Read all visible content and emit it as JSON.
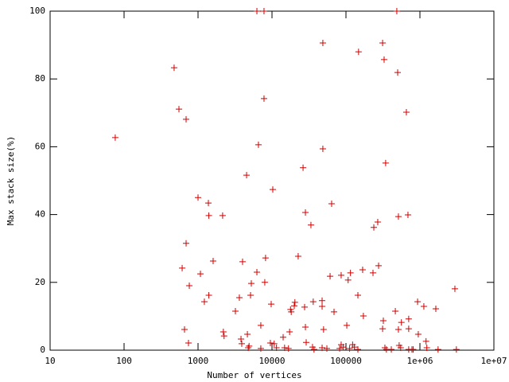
{
  "chart_data": {
    "type": "scatter",
    "x_label": "Number of vertices",
    "y_label": "Max stack size(%)",
    "xlog": true,
    "xlim": [
      10,
      10000000
    ],
    "xticks": [
      10,
      100,
      1000,
      10000,
      100000,
      {
        "value": 1000000,
        "label": "1e+06"
      },
      {
        "value": 10000000,
        "label": "1e+07"
      }
    ],
    "ylim": [
      0,
      100
    ],
    "yticks": [
      0,
      20,
      40,
      60,
      80,
      100
    ],
    "color": "#d00000",
    "x": [
      76,
      475,
      552,
      690,
      610,
      690,
      762,
      656,
      743,
      1000,
      1077,
      1380,
      1400,
      1400,
      1218,
      1600,
      2150,
      2200,
      2250,
      3200,
      3620,
      3810,
      4000,
      3900,
      4530,
      4650,
      4770,
      5130,
      5250,
      4900,
      6250,
      6560,
      6250,
      7060,
      7060,
      7800,
      7990,
      8180,
      7800,
      9750,
      9500,
      10250,
      10700,
      11500,
      14150,
      14800,
      16700,
      17300,
      17800,
      18200,
      20000,
      20400,
      22600,
      26300,
      28300,
      27600,
      28300,
      29000,
      33600,
      35300,
      36100,
      37000,
      48700,
      48700,
      47600,
      47600,
      49800,
      47600,
      55200,
      64000,
      61000,
      69000,
      86100,
      86100,
      82200,
      92000,
      102600,
      107000,
      112000,
      115000,
      123000,
      130000,
      145000,
      148000,
      145000,
      168000,
      172000,
      232000,
      238000,
      269000,
      276000,
      313000,
      328000,
      320000,
      313000,
      336000,
      344000,
      352000,
      410000,
      465000,
      487000,
      500000,
      512000,
      512000,
      524000,
      549000,
      562000,
      656000,
      689000,
      705000,
      705000,
      705000,
      780000,
      810000,
      930000,
      950000,
      1130000,
      1210000,
      1240000,
      1640000,
      1760000,
      2970000,
      3110000
    ],
    "values": [
      62.7,
      83.3,
      71.1,
      68.1,
      24.2,
      31.5,
      19,
      6.1,
      2.1,
      45,
      22.5,
      43.4,
      39.7,
      16.2,
      14.3,
      26.3,
      39.7,
      5.4,
      4.2,
      11.5,
      15.5,
      3.3,
      26.1,
      1.9,
      51.6,
      4.7,
      0.7,
      16.2,
      19.7,
      1.2,
      100,
      60.6,
      23,
      7.3,
      0.5,
      74.2,
      20,
      27.2,
      100,
      13.6,
      2.1,
      47.4,
      1.9,
      0.7,
      3.8,
      0.7,
      0.5,
      5.4,
      12,
      11.3,
      13.1,
      14.1,
      27.7,
      53.8,
      40.6,
      12.7,
      6.8,
      2.3,
      36.9,
      0.9,
      14.3,
      0.2,
      90.6,
      59.4,
      14.6,
      12.9,
      6.1,
      0.7,
      0.5,
      43.2,
      21.8,
      11.3,
      22.1,
      1.6,
      0.5,
      0.9,
      7.3,
      20.7,
      0.5,
      22.8,
      1.6,
      0.9,
      16.2,
      88,
      0.2,
      23.7,
      10.1,
      22.8,
      36.2,
      37.8,
      24.9,
      90.6,
      85.7,
      8.7,
      6.3,
      0.7,
      55.2,
      0.2,
      0.2,
      11.5,
      100,
      81.9,
      39.4,
      6.1,
      1.4,
      0.7,
      8.2,
      70.2,
      39.9,
      9.2,
      6.3,
      0.2,
      0.2,
      0.2,
      14.3,
      4.7,
      12.9,
      2.6,
      0.7,
      12.2,
      0.2,
      18.1,
      0.2
    ]
  }
}
